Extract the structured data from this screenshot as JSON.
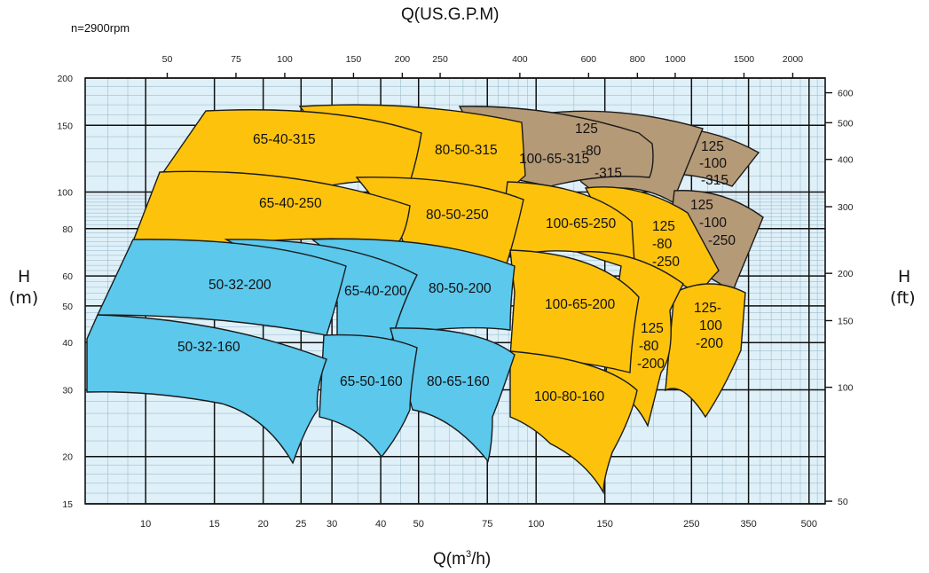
{
  "chart_data": {
    "type": "area",
    "title": "Q(US.G.P.M)",
    "speed_label": "n=2900rpm",
    "xlabel_bottom": "Q(m³/h)",
    "xlabel_top": "Q(US.G.P.M)",
    "ylabel_left": "H\n(m)",
    "ylabel_right": "H\n(ft)",
    "x_scale": "log",
    "y_scale": "log",
    "xlim": [
      7,
      550
    ],
    "ylim": [
      15,
      200
    ],
    "grid": true,
    "x_ticks_bottom": [
      "10",
      "15",
      "20",
      "25",
      "30",
      "40",
      "50",
      "75",
      "100",
      "150",
      "250",
      "350",
      "500"
    ],
    "x_ticks_top": [
      "50",
      "75",
      "100",
      "150",
      "200",
      "250",
      "400",
      "600",
      "800",
      "1000",
      "1500",
      "2000"
    ],
    "y_ticks_left": [
      "200",
      "150",
      "100",
      "80",
      "60",
      "50",
      "40",
      "30",
      "20",
      "15"
    ],
    "y_ticks_right": [
      "600",
      "500",
      "400",
      "300",
      "200",
      "150",
      "100",
      "50"
    ],
    "colors": {
      "blue": "#5bc8ec",
      "yellow": "#fdc30c",
      "brown": "#b59a78",
      "grid_bg": "#dff0f8",
      "grid_line": "#111111"
    },
    "series": [
      {
        "name": "65-40-315",
        "color": "brown_no",
        "fill": "yellow",
        "q_range": [
          13,
          60
        ],
        "h_range": [
          75,
          160
        ]
      },
      {
        "name": "80-50-315",
        "fill": "yellow",
        "q_range": [
          45,
          115
        ],
        "h_range": [
          85,
          165
        ]
      },
      {
        "name": "100-65-315",
        "fill": "brown",
        "q_range": [
          90,
          200
        ],
        "h_range": [
          90,
          165
        ]
      },
      {
        "name": "125\n-80\n-315",
        "fill": "brown",
        "q_range": [
          150,
          280
        ],
        "h_range": [
          100,
          160
        ]
      },
      {
        "name": "125\n-100\n-315",
        "fill": "brown",
        "q_range": [
          200,
          400
        ],
        "h_range": [
          100,
          150
        ]
      },
      {
        "name": "65-40-250",
        "fill": "yellow",
        "q_range": [
          12,
          58
        ],
        "h_range": [
          70,
          120
        ]
      },
      {
        "name": "80-50-250",
        "fill": "yellow",
        "q_range": [
          45,
          110
        ],
        "h_range": [
          60,
          110
        ]
      },
      {
        "name": "100-65-250",
        "fill": "yellow",
        "q_range": [
          90,
          200
        ],
        "h_range": [
          60,
          105
        ]
      },
      {
        "name": "125\n-80\n-250",
        "fill": "yellow",
        "q_range": [
          130,
          280
        ],
        "h_range": [
          50,
          100
        ]
      },
      {
        "name": "125\n-100\n-250",
        "fill": "brown",
        "q_range": [
          200,
          400
        ],
        "h_range": [
          55,
          100
        ]
      },
      {
        "name": "50-32-200",
        "fill": "blue",
        "q_range": [
          7,
          35
        ],
        "h_range": [
          40,
          70
        ]
      },
      {
        "name": "65-40-200",
        "fill": "blue",
        "q_range": [
          20,
          60
        ],
        "h_range": [
          38,
          68
        ]
      },
      {
        "name": "80-50-200",
        "fill": "blue",
        "q_range": [
          35,
          110
        ],
        "h_range": [
          35,
          65
        ]
      },
      {
        "name": "100-65-200",
        "fill": "yellow",
        "q_range": [
          90,
          200
        ],
        "h_range": [
          30,
          60
        ]
      },
      {
        "name": "125\n-80\n-200",
        "fill": "yellow",
        "q_range": [
          130,
          280
        ],
        "h_range": [
          25,
          55
        ]
      },
      {
        "name": "125-\n100\n-200",
        "fill": "yellow",
        "q_range": [
          200,
          400
        ],
        "h_range": [
          25,
          55
        ]
      },
      {
        "name": "50-32-160",
        "fill": "blue",
        "q_range": [
          7,
          25
        ],
        "h_range": [
          20,
          45
        ]
      },
      {
        "name": "65-50-160",
        "fill": "blue",
        "q_range": [
          25,
          45
        ],
        "h_range": [
          20,
          40
        ]
      },
      {
        "name": "80-65-160",
        "fill": "blue",
        "q_range": [
          40,
          80
        ],
        "h_range": [
          20,
          40
        ]
      },
      {
        "name": "100-80-160",
        "fill": "yellow",
        "q_range": [
          75,
          150
        ],
        "h_range": [
          16,
          38
        ]
      }
    ]
  }
}
